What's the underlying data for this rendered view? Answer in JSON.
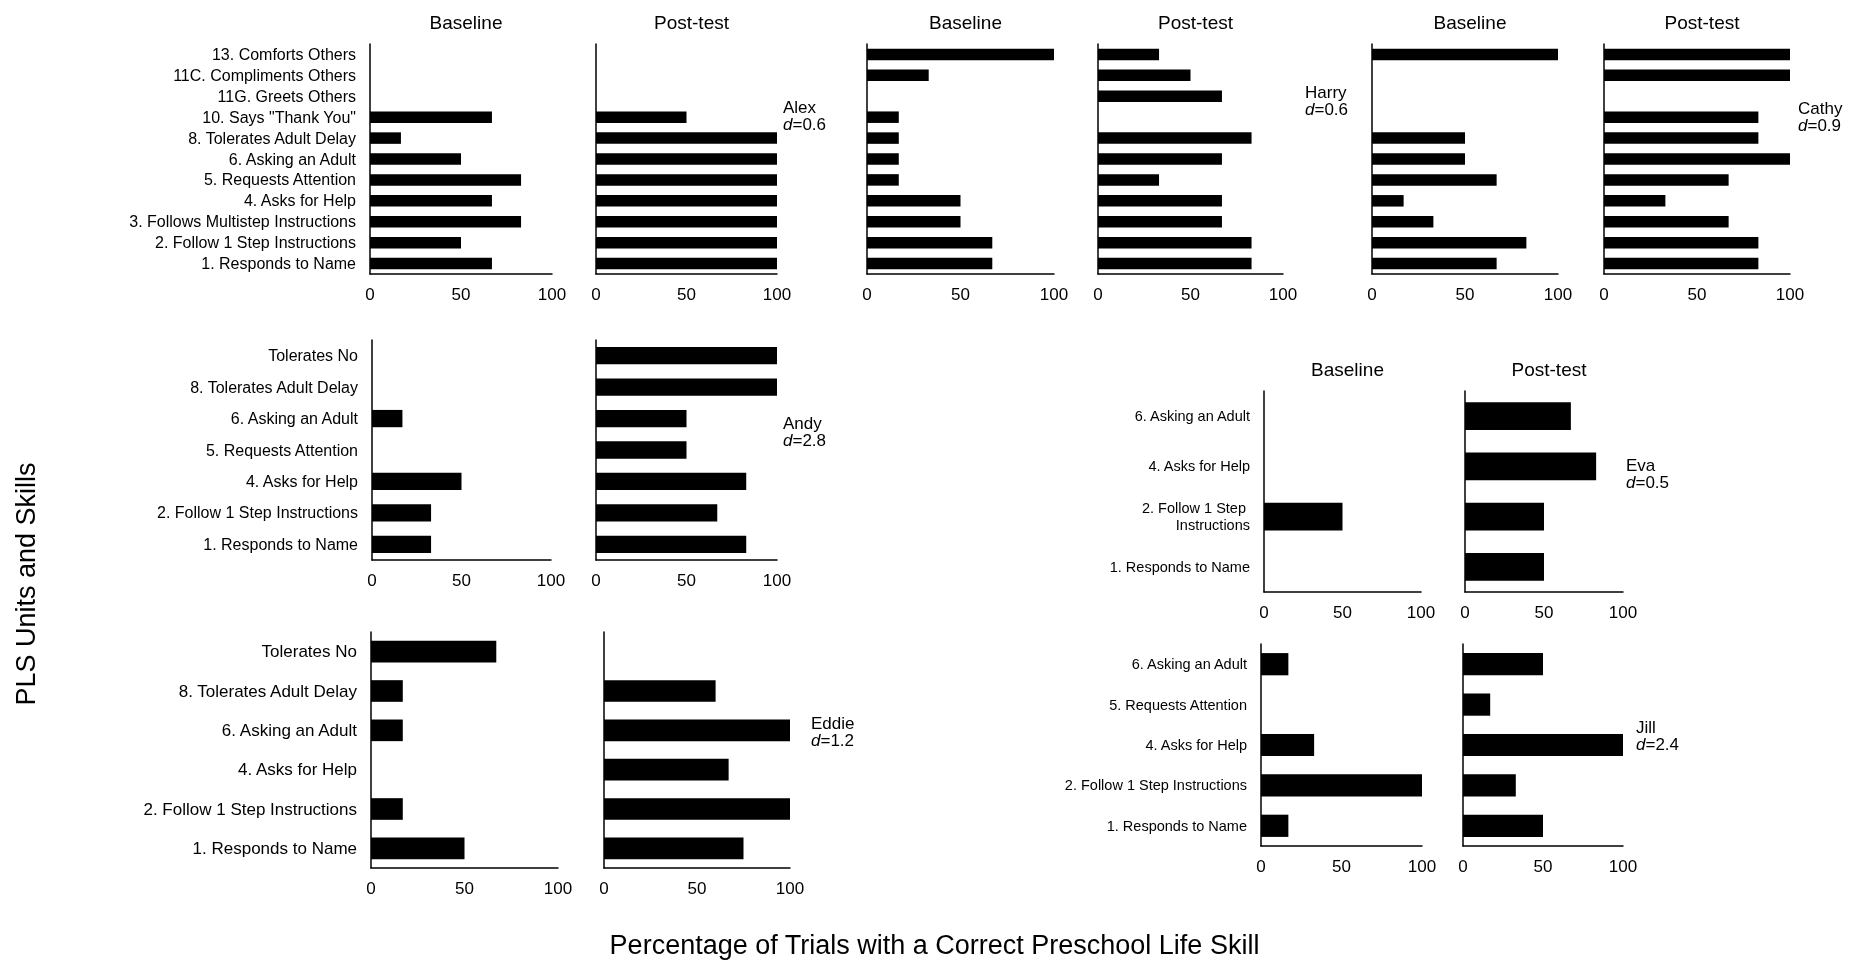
{
  "chart_data": [
    {
      "type": "bar",
      "orientation": "horizontal",
      "title": "Baseline",
      "categories": [
        "13. Comforts Others",
        "11C. Compliments Others",
        "11G. Greets Others",
        "10. Says \"Thank You\"",
        "8. Tolerates Adult Delay",
        "6. Asking an Adult",
        "5. Requests Attention",
        "4. Asks for Help",
        "3. Follows Multistep Instructions",
        "2. Follow 1 Step Instructions",
        "1. Responds to Name"
      ],
      "values": [
        0,
        0,
        0,
        67,
        17,
        50,
        83,
        67,
        83,
        50,
        67
      ],
      "color": "#000000",
      "xlim": [
        0,
        100
      ],
      "xticks": [
        0,
        50,
        100
      ]
    },
    {
      "type": "bar",
      "orientation": "horizontal",
      "title": "Post-test",
      "categories": [
        null,
        null,
        null,
        null,
        null,
        null,
        null,
        null,
        null,
        null,
        null
      ],
      "values": [
        0,
        0,
        0,
        50,
        100,
        100,
        100,
        100,
        100,
        100,
        100
      ],
      "color": "#000000",
      "xlim": [
        0,
        100
      ],
      "xticks": [
        0,
        50,
        100
      ],
      "tick_labels": "x",
      "annotations": [
        "Alex",
        "d=0.6"
      ]
    },
    {
      "type": "bar",
      "orientation": "horizontal",
      "title": "Baseline",
      "categories": [
        null,
        null,
        null,
        null,
        null,
        null,
        null,
        null,
        null,
        null,
        null
      ],
      "values": [
        100,
        33,
        0,
        17,
        17,
        17,
        17,
        50,
        50,
        67,
        67
      ],
      "color": "#000000",
      "xlim": [
        0,
        100
      ],
      "xticks": [
        0,
        50,
        100
      ],
      "tick_labels": "x"
    },
    {
      "type": "bar",
      "orientation": "horizontal",
      "title": "Post-test",
      "categories": [
        null,
        null,
        null,
        null,
        null,
        null,
        null,
        null,
        null,
        null,
        null
      ],
      "values": [
        33,
        50,
        67,
        0,
        83,
        67,
        33,
        67,
        67,
        83,
        83
      ],
      "color": "#000000",
      "xlim": [
        0,
        100
      ],
      "xticks": [
        0,
        50,
        100
      ],
      "tick_labels": "x",
      "annotations": [
        "Harry",
        "d=0.6"
      ]
    },
    {
      "type": "bar",
      "orientation": "horizontal",
      "title": "Baseline",
      "categories": [
        null,
        null,
        null,
        null,
        null,
        null,
        null,
        null,
        null,
        null,
        null
      ],
      "values": [
        100,
        0,
        0,
        0,
        50,
        50,
        67,
        17,
        33,
        83,
        67
      ],
      "color": "#000000",
      "xlim": [
        0,
        100
      ],
      "xticks": [
        0,
        50,
        100
      ],
      "tick_labels": "x"
    },
    {
      "type": "bar",
      "orientation": "horizontal",
      "title": "Post-test",
      "categories": [
        null,
        null,
        null,
        null,
        null,
        null,
        null,
        null,
        null,
        null,
        null
      ],
      "values": [
        100,
        100,
        0,
        83,
        83,
        100,
        67,
        33,
        67,
        83,
        83
      ],
      "color": "#000000",
      "xlim": [
        0,
        100
      ],
      "xticks": [
        0,
        50,
        100
      ],
      "tick_labels": "x",
      "annotations": [
        "Cathy",
        "d=0.9"
      ]
    },
    {
      "type": "bar",
      "orientation": "horizontal",
      "categories": [
        "Tolerates No",
        "8. Tolerates Adult Delay",
        "6. Asking an Adult",
        "5. Requests Attention",
        "4. Asks for Help",
        "2. Follow 1 Step Instructions",
        "1. Responds to Name"
      ],
      "values": [
        0,
        0,
        17,
        0,
        50,
        33,
        33
      ],
      "color": "#000000",
      "xlim": [
        0,
        100
      ],
      "xticks": [
        0,
        50,
        100
      ]
    },
    {
      "type": "bar",
      "orientation": "horizontal",
      "categories": [
        null,
        null,
        null,
        null,
        null,
        null,
        null
      ],
      "values": [
        100,
        100,
        50,
        50,
        83,
        67,
        83
      ],
      "color": "#000000",
      "xlim": [
        0,
        100
      ],
      "xticks": [
        0,
        50,
        100
      ],
      "tick_labels": "x",
      "annotations": [
        "Andy",
        "d=2.8"
      ]
    },
    {
      "type": "bar",
      "orientation": "horizontal",
      "title": "Baseline",
      "categories": [
        "6. Asking an Adult",
        "4. Asks for Help",
        "2. Follow 1 Step Instructions",
        "1. Responds to Name"
      ],
      "values": [
        0,
        0,
        50,
        0
      ],
      "color": "#000000",
      "xlim": [
        0,
        100
      ],
      "xticks": [
        0,
        50,
        100
      ]
    },
    {
      "type": "bar",
      "orientation": "horizontal",
      "title": "Post-test",
      "categories": [
        null,
        null,
        null,
        null
      ],
      "values": [
        67,
        83,
        50,
        50
      ],
      "color": "#000000",
      "xlim": [
        0,
        100
      ],
      "xticks": [
        0,
        50,
        100
      ],
      "tick_labels": "x",
      "annotations": [
        "Eva",
        "d=0.5"
      ]
    },
    {
      "type": "bar",
      "orientation": "horizontal",
      "categories": [
        "Tolerates No",
        "8. Tolerates Adult Delay",
        "6. Asking an Adult",
        "4. Asks for Help",
        "2. Follow 1 Step Instructions",
        "1. Responds to Name"
      ],
      "values": [
        67,
        17,
        17,
        0,
        17,
        50
      ],
      "color": "#000000",
      "xlim": [
        0,
        100
      ],
      "xticks": [
        0,
        50,
        100
      ]
    },
    {
      "type": "bar",
      "orientation": "horizontal",
      "categories": [
        null,
        null,
        null,
        null,
        null,
        null
      ],
      "values": [
        0,
        60,
        100,
        67,
        100,
        75
      ],
      "color": "#000000",
      "xlim": [
        0,
        100
      ],
      "xticks": [
        0,
        50,
        100
      ],
      "tick_labels": "x",
      "annotations": [
        "Eddie",
        "d=1.2"
      ]
    },
    {
      "type": "bar",
      "orientation": "horizontal",
      "categories": [
        "6. Asking an Adult",
        "5. Requests Attention",
        "4. Asks for Help",
        "2. Follow 1 Step Instructions",
        "1. Responds to Name"
      ],
      "values": [
        17,
        0,
        33,
        100,
        17
      ],
      "color": "#000000",
      "xlim": [
        0,
        100
      ],
      "xticks": [
        0,
        50,
        100
      ]
    },
    {
      "type": "bar",
      "orientation": "horizontal",
      "categories": [
        null,
        null,
        null,
        null,
        null
      ],
      "values": [
        50,
        17,
        100,
        33,
        50
      ],
      "color": "#000000",
      "xlim": [
        0,
        100
      ],
      "xticks": [
        0,
        50,
        100
      ],
      "tick_labels": "x",
      "annotations": [
        "Jill",
        "d=2.4"
      ]
    },
    {
      "type": "other",
      "xlabel": "Percentage of Trials with a Correct Preschool Life Skill",
      "ylabel": "PLS Units and Skills"
    }
  ]
}
